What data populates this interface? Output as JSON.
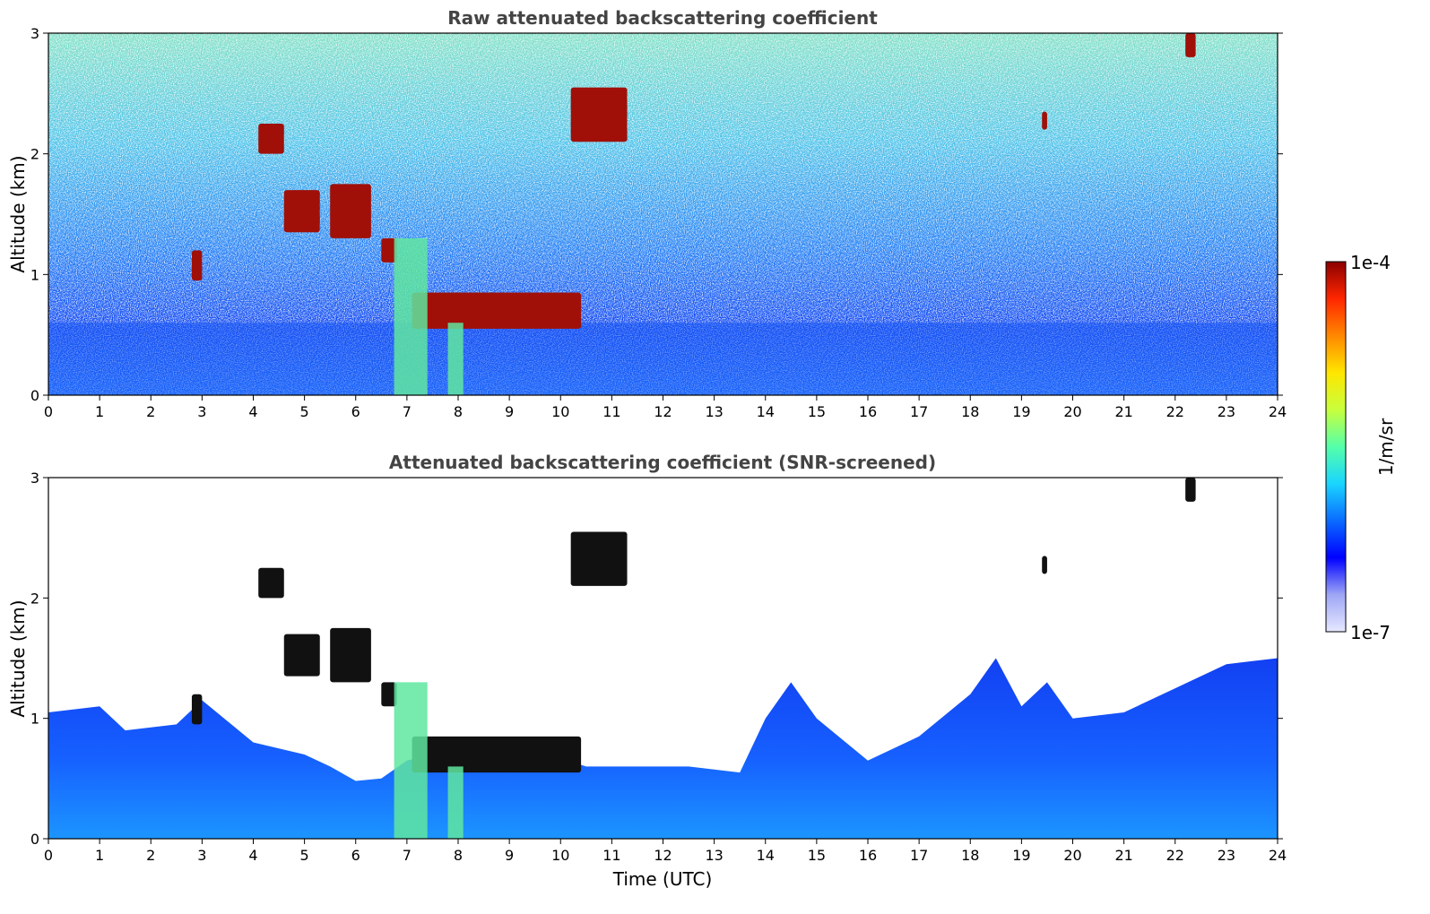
{
  "chart_data": [
    {
      "type": "heatmap",
      "title": "Raw attenuated backscattering coefficient",
      "xlabel": "",
      "ylabel": "Altitude (km)",
      "xlim": [
        0,
        24
      ],
      "ylim": [
        0,
        3
      ],
      "x_ticks": [
        "0",
        "1",
        "2",
        "3",
        "4",
        "5",
        "6",
        "7",
        "8",
        "9",
        "10",
        "11",
        "12",
        "13",
        "14",
        "15",
        "16",
        "17",
        "18",
        "19",
        "20",
        "21",
        "22",
        "23",
        "24"
      ],
      "y_ticks": [
        "0",
        "1",
        "2",
        "3"
      ],
      "screened": false,
      "features": [
        {
          "kind": "boundary_layer",
          "x": [
            0,
            24
          ],
          "top_km": 0.6
        },
        {
          "kind": "cloud",
          "x": [
            4.1,
            4.6
          ],
          "y": [
            2.0,
            2.25
          ]
        },
        {
          "kind": "cloud",
          "x": [
            4.6,
            5.3
          ],
          "y": [
            1.35,
            1.7
          ]
        },
        {
          "kind": "cloud",
          "x": [
            5.5,
            6.3
          ],
          "y": [
            1.3,
            1.75
          ]
        },
        {
          "kind": "cloud",
          "x": [
            6.5,
            6.8
          ],
          "y": [
            1.1,
            1.3
          ]
        },
        {
          "kind": "cloud",
          "x": [
            7.1,
            10.4
          ],
          "y": [
            0.55,
            0.85
          ]
        },
        {
          "kind": "cloud",
          "x": [
            10.2,
            11.3
          ],
          "y": [
            2.1,
            2.55
          ]
        },
        {
          "kind": "cloud",
          "x": [
            2.8,
            3.0
          ],
          "y": [
            0.95,
            1.2
          ]
        },
        {
          "kind": "cloud",
          "x": [
            19.4,
            19.5
          ],
          "y": [
            2.2,
            2.35
          ]
        },
        {
          "kind": "cloud",
          "x": [
            22.2,
            22.4
          ],
          "y": [
            2.8,
            3.0
          ]
        },
        {
          "kind": "precip",
          "x": [
            6.75,
            7.4
          ],
          "y": [
            0,
            1.3
          ]
        },
        {
          "kind": "precip",
          "x": [
            7.8,
            8.1
          ],
          "y": [
            0,
            0.6
          ]
        }
      ]
    },
    {
      "type": "heatmap",
      "title": "Attenuated backscattering coefficient (SNR-screened)",
      "xlabel": "Time (UTC)",
      "ylabel": "Altitude (km)",
      "xlim": [
        0,
        24
      ],
      "ylim": [
        0,
        3
      ],
      "x_ticks": [
        "0",
        "1",
        "2",
        "3",
        "4",
        "5",
        "6",
        "7",
        "8",
        "9",
        "10",
        "11",
        "12",
        "13",
        "14",
        "15",
        "16",
        "17",
        "18",
        "19",
        "20",
        "21",
        "22",
        "23",
        "24"
      ],
      "y_ticks": [
        "0",
        "1",
        "2",
        "3"
      ],
      "screened": true,
      "screened_top_km": [
        [
          0,
          1.05
        ],
        [
          1,
          1.1
        ],
        [
          1.5,
          0.9
        ],
        [
          2.5,
          0.95
        ],
        [
          3,
          1.15
        ],
        [
          4,
          0.8
        ],
        [
          5,
          0.7
        ],
        [
          5.5,
          0.6
        ],
        [
          6,
          0.48
        ],
        [
          6.5,
          0.5
        ],
        [
          7,
          0.65
        ],
        [
          8,
          0.75
        ],
        [
          9,
          0.8
        ],
        [
          10.5,
          0.6
        ],
        [
          11.5,
          0.6
        ],
        [
          12.5,
          0.6
        ],
        [
          13.5,
          0.55
        ],
        [
          14,
          1.0
        ],
        [
          14.5,
          1.3
        ],
        [
          15,
          1.0
        ],
        [
          16,
          0.65
        ],
        [
          17,
          0.85
        ],
        [
          18,
          1.2
        ],
        [
          18.5,
          1.5
        ],
        [
          19,
          1.1
        ],
        [
          19.5,
          1.3
        ],
        [
          20,
          1.0
        ],
        [
          21,
          1.05
        ],
        [
          22,
          1.25
        ],
        [
          23,
          1.45
        ],
        [
          24,
          1.5
        ]
      ]
    }
  ],
  "colorbar": {
    "label": "1/m/sr",
    "max_label": "1e-4",
    "min_label": "1e-7",
    "colormap": [
      "#e6e8ff",
      "#9ea6f5",
      "#0000ff",
      "#0a6bff",
      "#1ad5ff",
      "#55ffaa",
      "#c8ff3c",
      "#ffe600",
      "#ff8800",
      "#ff2600",
      "#8b0000"
    ]
  }
}
